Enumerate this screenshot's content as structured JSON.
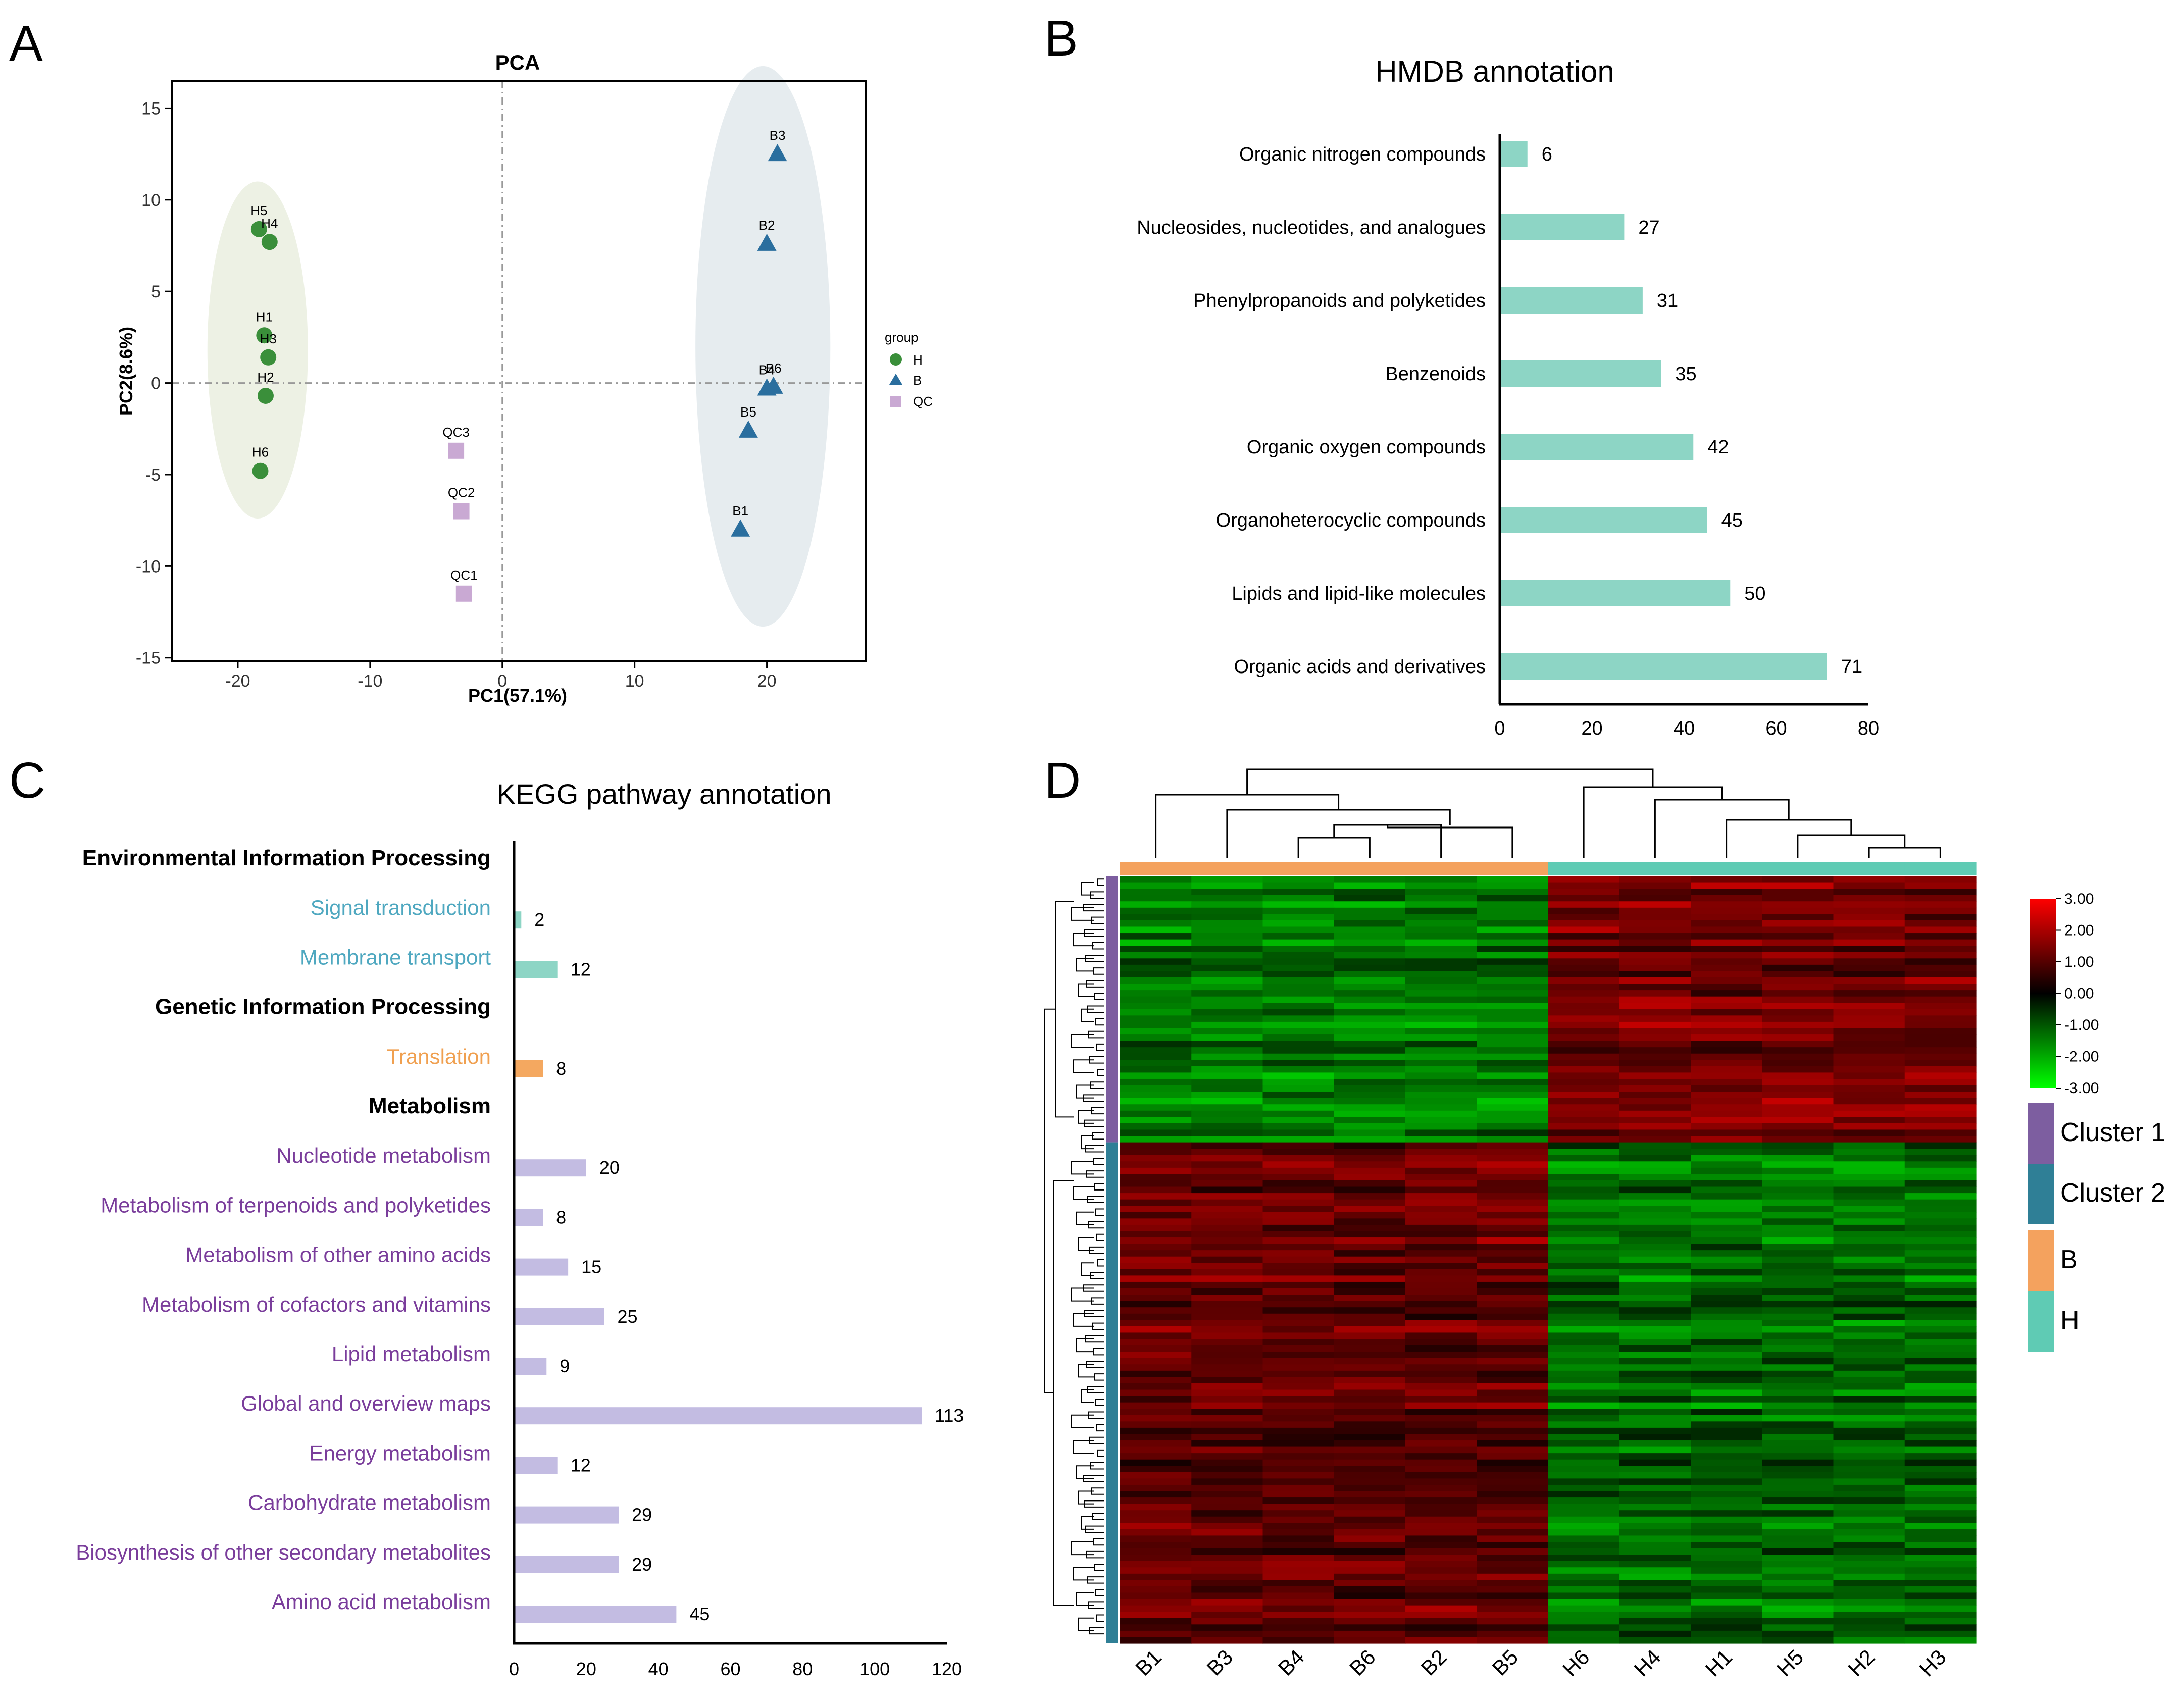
{
  "panels": {
    "A": "A",
    "B": "B",
    "C": "C",
    "D": "D"
  },
  "chart_data": [
    {
      "panel": "A",
      "type": "scatter",
      "title": "PCA",
      "xlabel": "PC1(57.1%)",
      "ylabel": "PC2(8.6%)",
      "xlim": [
        -25,
        27.5
      ],
      "ylim": [
        -15.2,
        16.5
      ],
      "xticks": [
        -20,
        -10,
        0,
        10,
        20
      ],
      "yticks": [
        15,
        10,
        5,
        0,
        -5,
        -10,
        -15
      ],
      "tick_labels_x": [
        "-20",
        "-10",
        "0",
        "10",
        "20"
      ],
      "tick_labels_y": [
        "15",
        "10",
        "5",
        "0",
        "-5",
        "-10",
        "-15"
      ],
      "legend": {
        "title": "group",
        "position": "right",
        "entries": [
          "H",
          "B",
          "QC"
        ]
      },
      "colors": {
        "H": "#3a8f3a",
        "B": "#2a6e9e",
        "QC": "#c9a9d3",
        "H_ellipse": "#edf1e4",
        "B_ellipse": "#e6ecef"
      },
      "series": [
        {
          "name": "H",
          "marker": "circle",
          "points": [
            {
              "label": "H5",
              "x": -18.4,
              "y": 8.4
            },
            {
              "label": "H4",
              "x": -17.6,
              "y": 7.7
            },
            {
              "label": "H1",
              "x": -18.0,
              "y": 2.6
            },
            {
              "label": "H3",
              "x": -17.7,
              "y": 1.4
            },
            {
              "label": "H2",
              "x": -17.9,
              "y": -0.7
            },
            {
              "label": "H6",
              "x": -18.3,
              "y": -4.8
            }
          ]
        },
        {
          "name": "B",
          "marker": "triangle",
          "points": [
            {
              "label": "B3",
              "x": 20.8,
              "y": 12.5
            },
            {
              "label": "B2",
              "x": 20.0,
              "y": 7.6
            },
            {
              "label": "B4",
              "x": 20.0,
              "y": -0.3
            },
            {
              "label": "B6",
              "x": 20.5,
              "y": -0.2
            },
            {
              "label": "B5",
              "x": 18.6,
              "y": -2.6
            },
            {
              "label": "B1",
              "x": 18.0,
              "y": -8.0
            }
          ]
        },
        {
          "name": "QC",
          "marker": "square",
          "points": [
            {
              "label": "QC3",
              "x": -3.5,
              "y": -3.7
            },
            {
              "label": "QC2",
              "x": -3.1,
              "y": -7.0
            },
            {
              "label": "QC1",
              "x": -2.9,
              "y": -11.5
            }
          ]
        }
      ],
      "ellipses": [
        {
          "group": "H",
          "cx": -18.5,
          "cy": 1.8,
          "rx": 3.8,
          "ry": 9.2
        },
        {
          "group": "B",
          "cx": 19.7,
          "cy": 2.0,
          "rx": 5.1,
          "ry": 15.3
        }
      ]
    },
    {
      "panel": "B",
      "type": "bar",
      "orientation": "horizontal",
      "title": "HMDB annotation",
      "color": "#8dd5c5",
      "xlim": [
        0,
        80
      ],
      "xticks": [
        "0",
        "20",
        "40",
        "60",
        "80"
      ],
      "categories": [
        "Organic nitrogen compounds",
        "Nucleosides, nucleotides, and analogues",
        "Phenylpropanoids and polyketides",
        "Benzenoids",
        "Organic oxygen compounds",
        "Organoheterocyclic compounds",
        "Lipids and lipid-like molecules",
        "Organic acids and derivatives"
      ],
      "values": [
        6,
        27,
        31,
        35,
        42,
        45,
        50,
        71
      ],
      "value_labels": [
        "6",
        "27",
        "31",
        "35",
        "42",
        "45",
        "50",
        "71"
      ]
    },
    {
      "panel": "C",
      "type": "bar",
      "orientation": "horizontal",
      "title": "KEGG pathway annotation",
      "xlim": [
        0,
        120
      ],
      "xticks": [
        "0",
        "20",
        "40",
        "60",
        "80",
        "100",
        "120"
      ],
      "colors": {
        "env": "#8dd5c5",
        "gen": "#f4a860",
        "met": "#c3bce2",
        "env_text": "#4fa8c0",
        "gen_text": "#f0a050",
        "met_text": "#7a3d9b"
      },
      "rows": [
        {
          "kind": "header",
          "label": "Environmental Information Processing"
        },
        {
          "kind": "bar",
          "group": "env",
          "label": "Signal transduction",
          "value": 2,
          "value_label": "2"
        },
        {
          "kind": "bar",
          "group": "env",
          "label": "Membrane transport",
          "value": 12,
          "value_label": "12"
        },
        {
          "kind": "header",
          "label": "Genetic Information Processing"
        },
        {
          "kind": "bar",
          "group": "gen",
          "label": "Translation",
          "value": 8,
          "value_label": "8"
        },
        {
          "kind": "header",
          "label": "Metabolism"
        },
        {
          "kind": "bar",
          "group": "met",
          "label": "Nucleotide metabolism",
          "value": 20,
          "value_label": "20"
        },
        {
          "kind": "bar",
          "group": "met",
          "label": "Metabolism of terpenoids and polyketides",
          "value": 8,
          "value_label": "8"
        },
        {
          "kind": "bar",
          "group": "met",
          "label": "Metabolism of other amino acids",
          "value": 15,
          "value_label": "15"
        },
        {
          "kind": "bar",
          "group": "met",
          "label": "Metabolism of cofactors and vitamins",
          "value": 25,
          "value_label": "25"
        },
        {
          "kind": "bar",
          "group": "met",
          "label": "Lipid metabolism",
          "value": 9,
          "value_label": "9"
        },
        {
          "kind": "bar",
          "group": "met",
          "label": "Global and overview maps",
          "value": 113,
          "value_label": "113"
        },
        {
          "kind": "bar",
          "group": "met",
          "label": "Energy metabolism",
          "value": 12,
          "value_label": "12"
        },
        {
          "kind": "bar",
          "group": "met",
          "label": "Carbohydrate metabolism",
          "value": 29,
          "value_label": "29"
        },
        {
          "kind": "bar",
          "group": "met",
          "label": "Biosynthesis of other secondary metabolites",
          "value": 29,
          "value_label": "29"
        },
        {
          "kind": "bar",
          "group": "met",
          "label": "Amino acid metabolism",
          "value": 45,
          "value_label": "45"
        }
      ]
    },
    {
      "panel": "D",
      "type": "heatmap",
      "columns": [
        "B1",
        "B3",
        "B4",
        "B6",
        "B2",
        "B5",
        "H6",
        "H4",
        "H1",
        "H5",
        "H2",
        "H3"
      ],
      "column_groups": [
        "B",
        "B",
        "B",
        "B",
        "B",
        "B",
        "H",
        "H",
        "H",
        "H",
        "H",
        "H"
      ],
      "row_clusters": [
        {
          "name": "Cluster 1",
          "rows": 42
        },
        {
          "name": "Cluster 2",
          "rows": 79
        }
      ],
      "cluster_mean_values": {
        "Cluster 1": {
          "B": -1.4,
          "H": 1.4
        },
        "Cluster 2": {
          "B": 1.2,
          "H": -1.3
        }
      },
      "color_scale": {
        "min": -3.0,
        "max": 3.0,
        "low": "#00ff00",
        "mid": "#000000",
        "high": "#ff0000",
        "tick_labels": [
          "3.00",
          "2.00",
          "1.00",
          "0.00",
          "-1.00",
          "-2.00",
          "-3.00"
        ]
      },
      "legend": [
        {
          "label": "Cluster 1",
          "color": "#7d5ea0"
        },
        {
          "label": "Cluster 2",
          "color": "#2f7f96"
        },
        {
          "label": "B",
          "color": "#f4a25e"
        },
        {
          "label": "H",
          "color": "#5fcbb4"
        }
      ]
    }
  ]
}
